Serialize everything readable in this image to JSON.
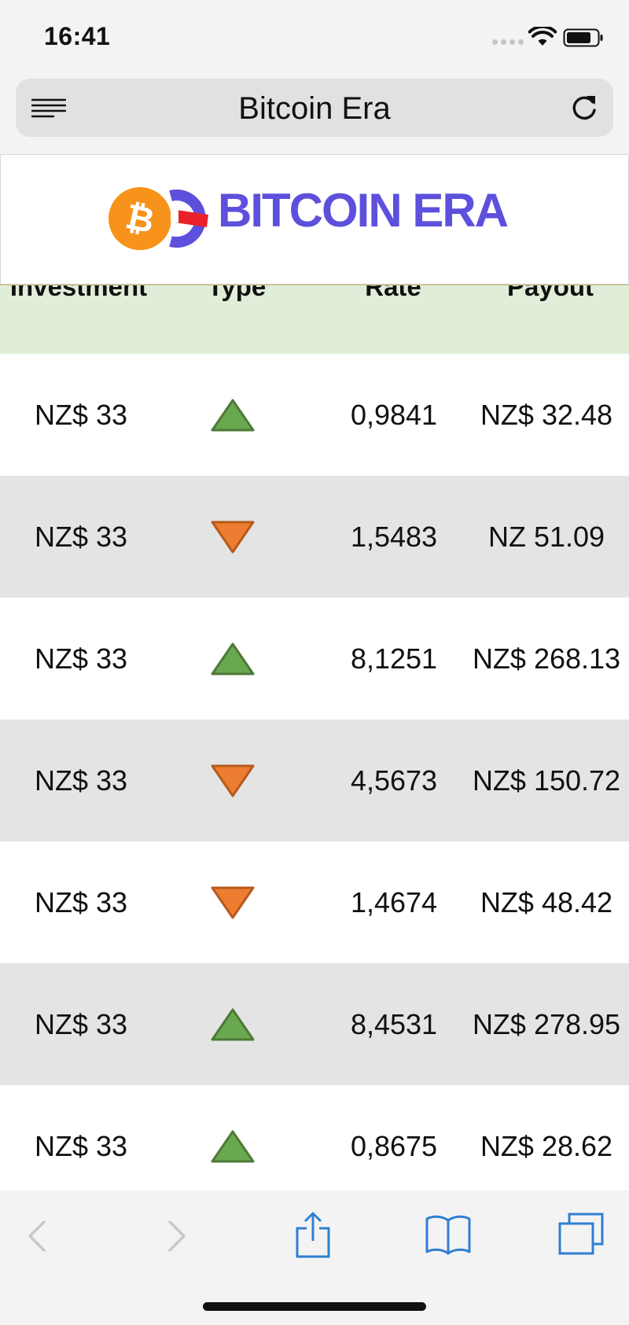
{
  "status_bar": {
    "time": "16:41"
  },
  "browser": {
    "page_title": "Bitcoin Era"
  },
  "logo": {
    "coin_symbol": "₿",
    "text": "BITCOIN ERA",
    "text_color": "#5d50dc",
    "coin_color": "#f7931a"
  },
  "table": {
    "headers": {
      "investment": "Investment",
      "type": "Type",
      "rate": "Rate",
      "payout": "Payout"
    },
    "rows": [
      {
        "investment": "NZ$ 33",
        "type": "up",
        "rate": "0,9841",
        "payout": "NZ$ 32.48"
      },
      {
        "investment": "NZ$ 33",
        "type": "down",
        "rate": "1,5483",
        "payout": "NZ 51.09"
      },
      {
        "investment": "NZ$ 33",
        "type": "up",
        "rate": "8,1251",
        "payout": "NZ$ 268.13"
      },
      {
        "investment": "NZ$ 33",
        "type": "down",
        "rate": "4,5673",
        "payout": "NZ$ 150.72"
      },
      {
        "investment": "NZ$ 33",
        "type": "down",
        "rate": "1,4674",
        "payout": "NZ$ 48.42"
      },
      {
        "investment": "NZ$ 33",
        "type": "up",
        "rate": "8,4531",
        "payout": "NZ$ 278.95"
      },
      {
        "investment": "NZ$ 33",
        "type": "up",
        "rate": "0,8675",
        "payout": "NZ$ 28.62"
      }
    ],
    "colors": {
      "up": "#6aa84f",
      "down": "#ed7d31",
      "header_bg": "#e0eed9",
      "alt_row_bg": "#e4e4e4"
    }
  },
  "toolbar": {
    "icons": [
      "back-icon",
      "forward-icon",
      "share-icon",
      "bookmarks-icon",
      "tabs-icon"
    ],
    "accent": "#2f7fd0"
  }
}
